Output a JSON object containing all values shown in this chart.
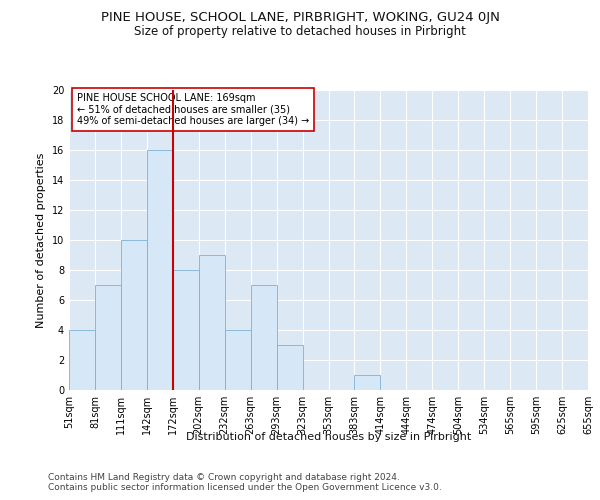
{
  "title": "PINE HOUSE, SCHOOL LANE, PIRBRIGHT, WOKING, GU24 0JN",
  "subtitle": "Size of property relative to detached houses in Pirbright",
  "xlabel": "Distribution of detached houses by size in Pirbright",
  "ylabel": "Number of detached properties",
  "bins": [
    "51sqm",
    "81sqm",
    "111sqm",
    "142sqm",
    "172sqm",
    "202sqm",
    "232sqm",
    "263sqm",
    "293sqm",
    "323sqm",
    "353sqm",
    "383sqm",
    "414sqm",
    "444sqm",
    "474sqm",
    "504sqm",
    "534sqm",
    "565sqm",
    "595sqm",
    "625sqm",
    "655sqm"
  ],
  "bar_values": [
    4,
    7,
    10,
    16,
    8,
    9,
    4,
    7,
    3,
    0,
    0,
    1,
    0,
    0,
    0,
    0,
    0,
    0,
    0,
    0
  ],
  "bar_color": "#d6e8f7",
  "bar_edge_color": "#7ab0d8",
  "vline_color": "#cc0000",
  "annotation_text": "PINE HOUSE SCHOOL LANE: 169sqm\n← 51% of detached houses are smaller (35)\n49% of semi-detached houses are larger (34) →",
  "annotation_box_color": "#ffffff",
  "annotation_box_edge_color": "#cc0000",
  "ylim": [
    0,
    20
  ],
  "yticks": [
    0,
    2,
    4,
    6,
    8,
    10,
    12,
    14,
    16,
    18,
    20
  ],
  "background_color": "#ffffff",
  "plot_background_color": "#dce9f5",
  "footer_line1": "Contains HM Land Registry data © Crown copyright and database right 2024.",
  "footer_line2": "Contains public sector information licensed under the Open Government Licence v3.0.",
  "title_fontsize": 9.5,
  "subtitle_fontsize": 8.5,
  "label_fontsize": 8,
  "tick_fontsize": 7,
  "annotation_fontsize": 7,
  "footer_fontsize": 6.5,
  "n_bins": 20,
  "vline_bin": 4
}
